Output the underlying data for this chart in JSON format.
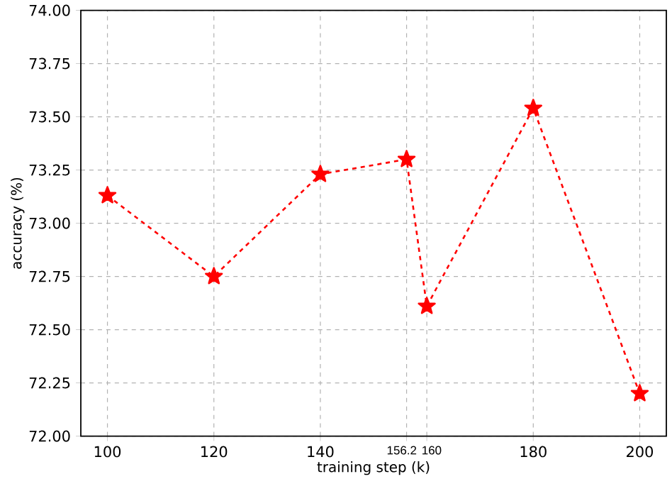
{
  "chart_data": {
    "type": "line",
    "xlabel": "training step (k)",
    "ylabel": "accuracy (%)",
    "x": [
      100,
      120,
      140,
      156.2,
      160,
      180,
      200
    ],
    "series": [
      {
        "color": "#ff0000",
        "values": [
          73.13,
          72.75,
          73.23,
          73.3,
          72.61,
          73.54,
          72.2
        ]
      }
    ],
    "xlim": [
      95,
      205
    ],
    "ylim": [
      72,
      74
    ],
    "xticks": [
      100,
      120,
      140,
      156.2,
      160,
      180,
      200
    ],
    "yticks": [
      {
        "value": 72,
        "label": "72.00"
      },
      {
        "value": 72.25,
        "label": "72.25"
      },
      {
        "value": 72.5,
        "label": "72.50"
      },
      {
        "value": 72.75,
        "label": "72.75"
      },
      {
        "value": 73,
        "label": "73.00"
      },
      {
        "value": 73.25,
        "label": "73.25"
      },
      {
        "value": 73.5,
        "label": "73.50"
      },
      {
        "value": 73.75,
        "label": "73.75"
      },
      {
        "value": 74,
        "label": "74.00"
      }
    ],
    "grid": true,
    "marker": "star",
    "line_style": "dashed"
  }
}
